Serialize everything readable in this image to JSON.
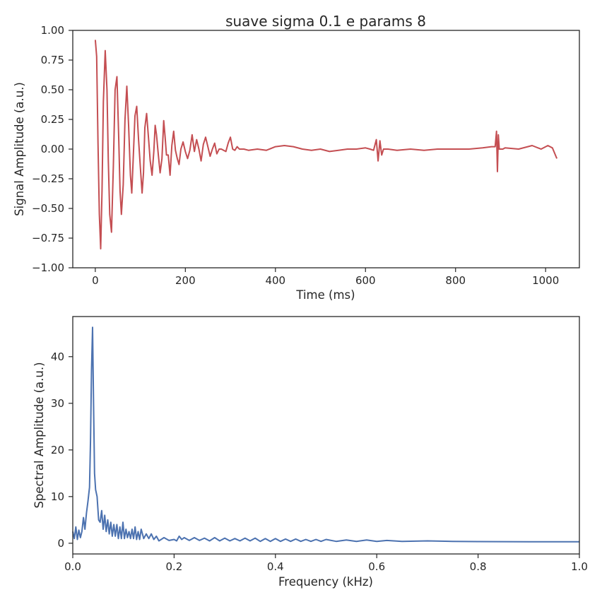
{
  "chart_data": [
    {
      "type": "line",
      "title": "suave sigma 0.1 e params 8",
      "xlabel": "Time (ms)",
      "ylabel": "Signal Amplitude (a.u.)",
      "xlim": [
        -50,
        1075
      ],
      "ylim": [
        -1.0,
        1.0
      ],
      "xticks": [
        0,
        200,
        400,
        600,
        800,
        1000
      ],
      "xtick_labels": [
        "0",
        "200",
        "400",
        "600",
        "800",
        "1000"
      ],
      "yticks": [
        -1.0,
        -0.75,
        -0.5,
        -0.25,
        0.0,
        0.25,
        0.5,
        0.75,
        1.0
      ],
      "ytick_labels": [
        "−1.00",
        "−0.75",
        "−0.50",
        "−0.25",
        "0.00",
        "0.25",
        "0.50",
        "0.75",
        "1.00"
      ],
      "grid": false,
      "color": "#c44e52",
      "series": [
        {
          "x": [
            0,
            3,
            6,
            9,
            12,
            15,
            18,
            22,
            26,
            29,
            32,
            36,
            40,
            44,
            48,
            52,
            55,
            58,
            62,
            66,
            70,
            74,
            78,
            81,
            84,
            88,
            92,
            96,
            100,
            104,
            107,
            110,
            114,
            118,
            122,
            126,
            130,
            133,
            136,
            140,
            144,
            148,
            152,
            155,
            158,
            162,
            166,
            170,
            174,
            178,
            182,
            186,
            190,
            195,
            200,
            205,
            210,
            215,
            220,
            225,
            230,
            235,
            240,
            245,
            250,
            255,
            260,
            265,
            270,
            275,
            280,
            285,
            290,
            295,
            300,
            305,
            310,
            315,
            320,
            330,
            340,
            360,
            380,
            400,
            420,
            440,
            460,
            480,
            500,
            520,
            540,
            560,
            580,
            600,
            610,
            618,
            624,
            628,
            632,
            636,
            640,
            645,
            650,
            670,
            700,
            730,
            760,
            800,
            830,
            860,
            880,
            888,
            891,
            893,
            895,
            897,
            900,
            905,
            910,
            940,
            970,
            990,
            1005,
            1015,
            1025
          ],
          "y": [
            0.92,
            0.78,
            0.05,
            -0.55,
            -0.84,
            -0.35,
            0.4,
            0.83,
            0.5,
            -0.1,
            -0.55,
            -0.7,
            -0.15,
            0.5,
            0.61,
            0.1,
            -0.35,
            -0.55,
            -0.3,
            0.25,
            0.53,
            0.2,
            -0.22,
            -0.37,
            -0.1,
            0.28,
            0.36,
            0.08,
            -0.15,
            -0.37,
            -0.2,
            0.18,
            0.3,
            0.1,
            -0.1,
            -0.22,
            -0.02,
            0.2,
            0.12,
            -0.05,
            -0.2,
            -0.08,
            0.24,
            0.1,
            -0.05,
            -0.05,
            -0.22,
            0.03,
            0.15,
            -0.01,
            -0.08,
            -0.13,
            0.0,
            0.06,
            -0.02,
            -0.08,
            -0.01,
            0.12,
            -0.02,
            0.08,
            0.0,
            -0.1,
            0.04,
            0.1,
            0.02,
            -0.06,
            0.0,
            0.05,
            -0.04,
            0.0,
            0.0,
            -0.01,
            -0.02,
            0.05,
            0.1,
            0.0,
            -0.01,
            0.02,
            0.0,
            0.0,
            -0.01,
            0.0,
            -0.01,
            0.02,
            0.03,
            0.02,
            0.0,
            -0.01,
            0.0,
            -0.02,
            -0.01,
            0.0,
            0.0,
            0.01,
            0.0,
            -0.01,
            0.08,
            -0.1,
            0.07,
            -0.05,
            0.0,
            0.0,
            0.0,
            -0.01,
            0.0,
            -0.01,
            0.0,
            0.0,
            0.0,
            0.01,
            0.02,
            0.02,
            0.15,
            -0.19,
            0.12,
            0.0,
            0.0,
            0.0,
            0.01,
            0.0,
            0.03,
            0.0,
            0.03,
            0.01,
            -0.08
          ]
        }
      ]
    },
    {
      "type": "line",
      "title": "",
      "xlabel": "Frequency (kHz)",
      "ylabel": "Spectral Amplitude (a.u.)",
      "xlim": [
        0.0,
        1.0
      ],
      "ylim": [
        -2.3,
        48.6
      ],
      "xticks": [
        0.0,
        0.2,
        0.4,
        0.6,
        0.8,
        1.0
      ],
      "xtick_labels": [
        "0.0",
        "0.2",
        "0.4",
        "0.6",
        "0.8",
        "1.0"
      ],
      "yticks": [
        0,
        10,
        20,
        30,
        40
      ],
      "ytick_labels": [
        "0",
        "10",
        "20",
        "30",
        "40"
      ],
      "grid": false,
      "color": "#4c72b0",
      "series": [
        {
          "x": [
            0.0,
            0.003,
            0.006,
            0.009,
            0.012,
            0.015,
            0.018,
            0.021,
            0.024,
            0.027,
            0.03,
            0.033,
            0.035,
            0.037,
            0.039,
            0.041,
            0.043,
            0.045,
            0.048,
            0.051,
            0.054,
            0.057,
            0.06,
            0.063,
            0.066,
            0.069,
            0.072,
            0.075,
            0.078,
            0.081,
            0.084,
            0.087,
            0.09,
            0.093,
            0.096,
            0.099,
            0.102,
            0.105,
            0.108,
            0.111,
            0.114,
            0.117,
            0.12,
            0.123,
            0.126,
            0.129,
            0.132,
            0.135,
            0.14,
            0.145,
            0.15,
            0.155,
            0.16,
            0.165,
            0.17,
            0.18,
            0.19,
            0.2,
            0.205,
            0.21,
            0.215,
            0.22,
            0.23,
            0.24,
            0.25,
            0.26,
            0.27,
            0.28,
            0.29,
            0.3,
            0.31,
            0.32,
            0.33,
            0.34,
            0.35,
            0.36,
            0.37,
            0.38,
            0.39,
            0.4,
            0.41,
            0.42,
            0.43,
            0.44,
            0.45,
            0.46,
            0.47,
            0.48,
            0.49,
            0.5,
            0.52,
            0.54,
            0.56,
            0.58,
            0.6,
            0.62,
            0.65,
            0.7,
            0.75,
            0.8,
            0.9,
            1.0
          ],
          "y": [
            2.5,
            1.0,
            3.5,
            0.8,
            2.8,
            1.2,
            2.5,
            5.5,
            3.0,
            6.5,
            9.0,
            12.0,
            22.0,
            37.0,
            46.3,
            30.0,
            15.0,
            11.5,
            10.0,
            5.0,
            4.5,
            7.0,
            3.0,
            6.0,
            2.5,
            5.0,
            2.0,
            4.5,
            1.5,
            4.0,
            1.5,
            4.0,
            1.0,
            3.5,
            1.0,
            4.5,
            1.0,
            3.0,
            1.2,
            2.5,
            1.0,
            3.0,
            1.0,
            3.5,
            0.8,
            2.5,
            0.8,
            3.0,
            1.0,
            2.0,
            1.0,
            2.0,
            0.8,
            1.5,
            0.5,
            1.2,
            0.6,
            0.8,
            0.5,
            1.5,
            0.8,
            1.2,
            0.6,
            1.2,
            0.6,
            1.1,
            0.5,
            1.2,
            0.5,
            1.1,
            0.5,
            1.0,
            0.5,
            1.1,
            0.5,
            1.1,
            0.4,
            1.0,
            0.4,
            1.0,
            0.4,
            0.9,
            0.4,
            0.9,
            0.4,
            0.8,
            0.4,
            0.8,
            0.4,
            0.8,
            0.4,
            0.7,
            0.4,
            0.7,
            0.4,
            0.6,
            0.4,
            0.5,
            0.4,
            0.35,
            0.3,
            0.3
          ]
        }
      ]
    }
  ]
}
